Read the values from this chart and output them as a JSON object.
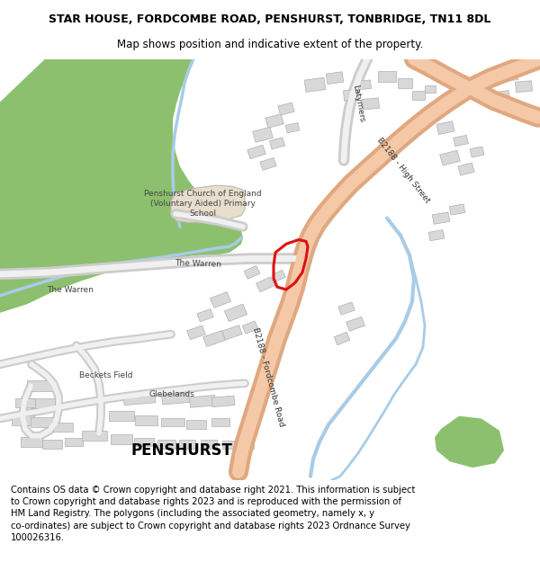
{
  "title_line1": "STAR HOUSE, FORDCOMBE ROAD, PENSHURST, TONBRIDGE, TN11 8DL",
  "title_line2": "Map shows position and indicative extent of the property.",
  "footer": "Contains OS data © Crown copyright and database right 2021. This information is subject to Crown copyright and database rights 2023 and is reproduced with the permission of HM Land Registry. The polygons (including the associated geometry, namely x, y co-ordinates) are subject to Crown copyright and database rights 2023 Ordnance Survey 100026316.",
  "title_fontsize": 9.0,
  "subtitle_fontsize": 8.5,
  "footer_fontsize": 7.2,
  "road_main_color": "#f5c8a8",
  "road_main_edge": "#e0a880",
  "road_minor_color": "#f0f0f0",
  "road_minor_edge": "#cccccc",
  "green_color": "#8dc06e",
  "water_color": "#a8cce8",
  "building_color": "#d8d8d8",
  "building_edge": "#b0b0b0",
  "school_color": "#e8dece",
  "plot_outline_color": "#dd1111",
  "white": "#ffffff",
  "map_bg": "#ffffff"
}
